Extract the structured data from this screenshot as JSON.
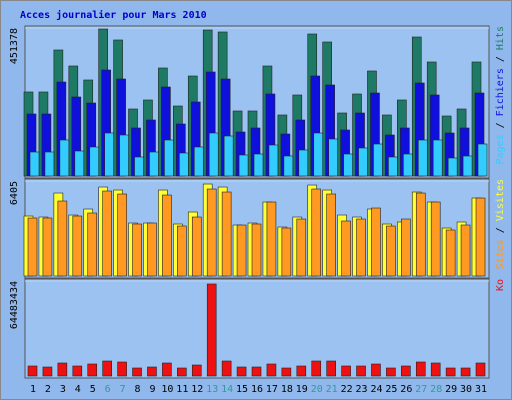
{
  "chart_data": [
    {
      "type": "bar",
      "title": "Acces journalier pour Mars 2010",
      "ylim": [
        0,
        451378
      ],
      "yticks": [
        451378
      ],
      "legend_separator": " / ",
      "series": [
        {
          "name": "Pages",
          "color": "#33ccff",
          "values": [
            73200,
            73200,
            109800,
            76250,
            88450,
            131150,
            125050,
            57950,
            73200,
            109800,
            70150,
            88450,
            131150,
            122000,
            64050,
            67100,
            94550,
            61000,
            79300,
            131150,
            112850,
            67100,
            85400,
            97600,
            57950,
            67100,
            109800,
            109800,
            54900,
            61000,
            97600
          ]
        },
        {
          "name": "Fichiers",
          "color": "#1010dd",
          "values": [
            189100,
            189100,
            286700,
            240950,
            222650,
            323300,
            295850,
            146400,
            170800,
            271450,
            158600,
            225700,
            317200,
            295850,
            134200,
            146400,
            250100,
            128100,
            170800,
            305000,
            277550,
            140300,
            192150,
            253150,
            125050,
            146400,
            283650,
            247050,
            131150,
            146400,
            253150
          ]
        },
        {
          "name": "Hits",
          "color": "#1e7a64",
          "values": [
            256200,
            256200,
            384300,
            335500,
            292800,
            448350,
            414800,
            204350,
            231800,
            329400,
            213500,
            305000,
            445300,
            439200,
            198250,
            198250,
            335500,
            186050,
            247050,
            433100,
            408700,
            192150,
            250100,
            320250,
            186050,
            231800,
            423950,
            347700,
            183000,
            204350,
            347700
          ]
        }
      ]
    },
    {
      "type": "bar",
      "ylim": [
        0,
        6405
      ],
      "yticks": [
        6405
      ],
      "series": [
        {
          "name": "Sites",
          "color": "#ff9922",
          "values": [
            3909,
            3909,
            5055,
            4044,
            4246,
            5729,
            5527,
            3505,
            3572,
            5459,
            3370,
            3977,
            5864,
            5662,
            3437,
            3505,
            4988,
            3235,
            3842,
            5864,
            5527,
            3707,
            3842,
            4583,
            3370,
            3842,
            5594,
            4988,
            3100,
            3437,
            5257
          ]
        },
        {
          "name": "Visites",
          "color": "#ffff33",
          "values": [
            4044,
            3977,
            5594,
            4111,
            4516,
            5999,
            5796,
            3572,
            3572,
            5796,
            3505,
            4314,
            6201,
            5999,
            3437,
            3572,
            4988,
            3303,
            3977,
            6133,
            5796,
            4111,
            3977,
            4516,
            3505,
            3640,
            5662,
            4988,
            3235,
            3640,
            5257
          ]
        }
      ]
    },
    {
      "type": "bar",
      "ylim": [
        0,
        64483434
      ],
      "yticks": [
        64483434
      ],
      "categories": [
        "1",
        "2",
        "3",
        "4",
        "5",
        "6",
        "7",
        "8",
        "9",
        "10",
        "11",
        "12",
        "13",
        "14",
        "15",
        "16",
        "17",
        "18",
        "19",
        "20",
        "21",
        "22",
        "23",
        "24",
        "25",
        "26",
        "27",
        "28",
        "29",
        "30",
        "31"
      ],
      "category_colors": [
        "#000000",
        "#000000",
        "#000000",
        "#000000",
        "#000000",
        "#339999",
        "#339999",
        "#000000",
        "#000000",
        "#000000",
        "#000000",
        "#000000",
        "#339999",
        "#339999",
        "#000000",
        "#000000",
        "#000000",
        "#000000",
        "#000000",
        "#339999",
        "#339999",
        "#000000",
        "#000000",
        "#000000",
        "#000000",
        "#000000",
        "#339999",
        "#339999",
        "#000000",
        "#000000",
        "#000000"
      ],
      "series": [
        {
          "name": "Ko",
          "color": "#ee1111",
          "values": [
            6787734,
            6108961,
            8824047,
            6787734,
            8145281,
            10181602,
            9502828,
            5430187,
            6108961,
            8824047,
            5430187,
            7466508,
            62447120,
            10181602,
            6108961,
            6108961,
            8145281,
            5430187,
            6787734,
            10181602,
            10181602,
            6787734,
            6787734,
            8145281,
            5430187,
            6787734,
            9502828,
            8824047,
            5430187,
            5430187,
            8824047
          ]
        }
      ]
    }
  ]
}
